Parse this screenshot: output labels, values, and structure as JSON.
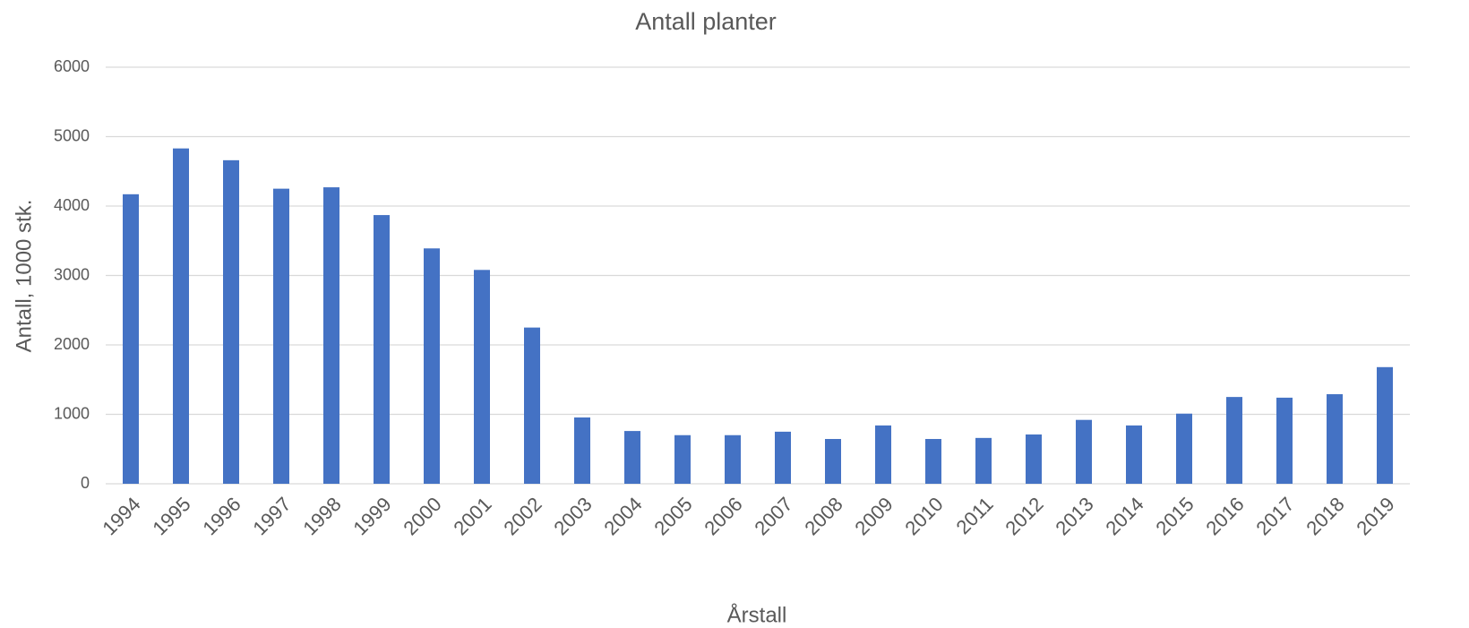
{
  "chart_data": {
    "type": "bar",
    "title": "Antall planter",
    "x_label": "Årstall",
    "y_label": "Antall, 1000 stk.",
    "categories": [
      "1994",
      "1995",
      "1996",
      "1997",
      "1998",
      "1999",
      "2000",
      "2001",
      "2002",
      "2003",
      "2004",
      "2005",
      "2006",
      "2007",
      "2008",
      "2009",
      "2010",
      "2011",
      "2012",
      "2013",
      "2014",
      "2015",
      "2016",
      "2017",
      "2018",
      "2019"
    ],
    "values": [
      4170,
      4830,
      4660,
      4250,
      4270,
      3870,
      3390,
      3080,
      2250,
      955,
      760,
      700,
      700,
      750,
      645,
      840,
      645,
      660,
      710,
      920,
      840,
      1010,
      1250,
      1240,
      1290,
      1680
    ],
    "color": "#4472c4",
    "ylim": [
      0,
      6000
    ],
    "yticks": [
      0,
      1000,
      2000,
      3000,
      4000,
      5000,
      6000
    ],
    "grid": true
  }
}
